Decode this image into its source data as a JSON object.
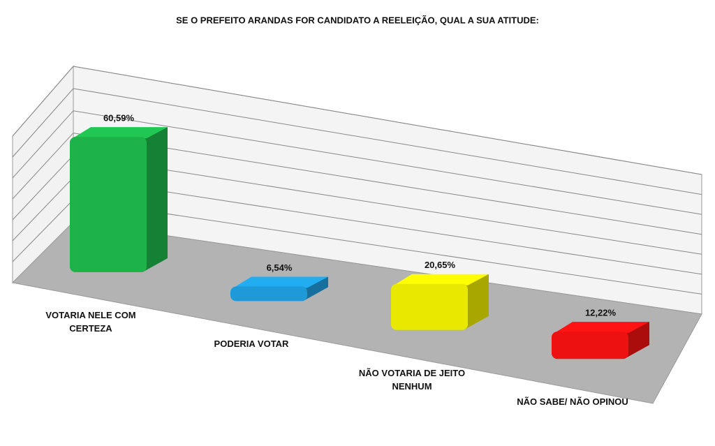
{
  "chart_data": {
    "type": "bar3d",
    "title": "SE O PREFEITO ARANDAS FOR CANDIDATO A REELEIÇÃO, QUAL A SUA ATITUDE:",
    "categories": [
      "VOTARIA NELE COM CERTEZA",
      "PODERIA VOTAR",
      "NÃO VOTARIA DE JEITO NENHUM",
      "NÃO SABE/ NÃO OPINOU"
    ],
    "values": [
      60.59,
      6.54,
      20.65,
      12.22
    ],
    "value_labels": [
      "60,59%",
      "6,54%",
      "20,65%",
      "12,22%"
    ],
    "colors": [
      "#1db34a",
      "#1e9ad8",
      "#e8e800",
      "#ee1111"
    ],
    "ylim": [
      0,
      70
    ],
    "yticks": [
      0,
      10,
      20,
      30,
      40,
      50,
      60,
      70
    ],
    "grid": true
  }
}
